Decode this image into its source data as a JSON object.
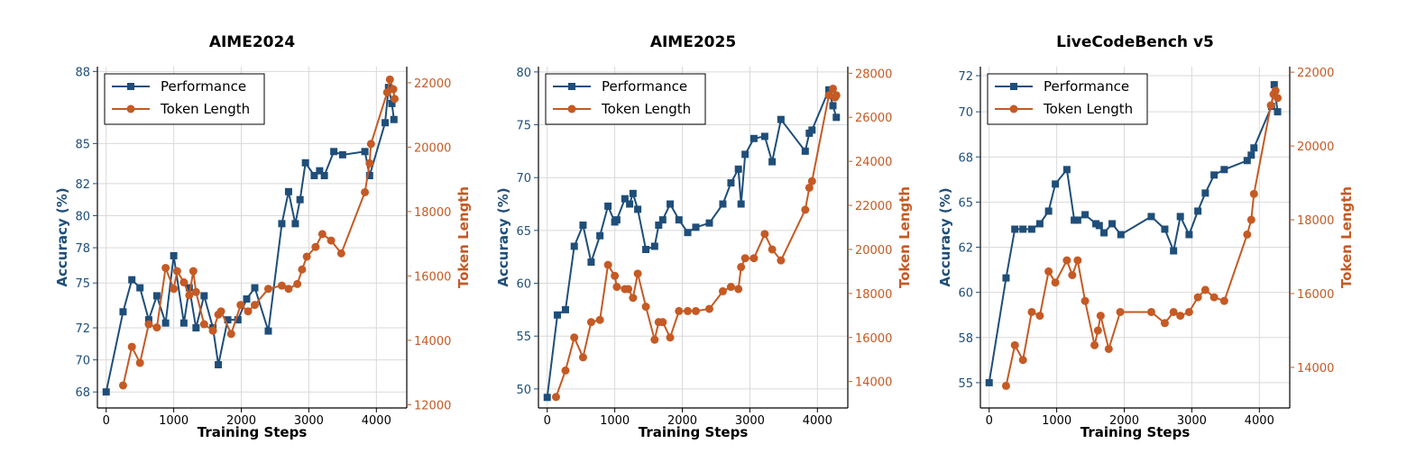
{
  "colors": {
    "performance": "#1f4e79",
    "token_length": "#c55a24",
    "grid": "#d9d9d9",
    "axis": "#000000"
  },
  "chart_data": [
    {
      "type": "line",
      "title": "AIME2024",
      "xlabel": "Training Steps",
      "ylabel": "Accuracy (%)",
      "y2label": "Token Length",
      "xlim": [
        -130,
        4450
      ],
      "ylim": [
        67.0,
        88.3
      ],
      "y2lim": [
        11900,
        22500
      ],
      "xticks": [
        0,
        1000,
        2000,
        3000,
        4000
      ],
      "xtick_labels": [
        "0",
        "1000",
        "2000",
        "3000",
        "4000"
      ],
      "yticks": [
        68,
        70,
        72,
        74,
        76,
        78,
        80,
        82,
        84,
        86,
        88
      ],
      "ytick_labels": [
        "68",
        "70",
        "72",
        "75",
        "78",
        "80",
        "82",
        "85",
        "88"
      ],
      "ytick_positions": [
        68,
        70,
        72,
        74.8,
        77,
        79,
        81,
        83.5,
        88
      ],
      "y2ticks": [
        12000,
        14000,
        16000,
        18000,
        20000,
        22000
      ],
      "y2tick_labels": [
        "12000",
        "14000",
        "16000",
        "18000",
        "20000",
        "22000"
      ],
      "grid": true,
      "legend": "top-left",
      "series": [
        {
          "name": "Performance",
          "axis": "left",
          "marker": "square",
          "x": [
            0,
            250,
            380,
            500,
            630,
            750,
            880,
            1000,
            1150,
            1230,
            1330,
            1450,
            1580,
            1660,
            1800,
            1950,
            2080,
            2200,
            2400,
            2600,
            2700,
            2800,
            2870,
            2950,
            3080,
            3160,
            3230,
            3370,
            3500,
            3830,
            3900,
            4130,
            4180,
            4230,
            4260
          ],
          "y": [
            68.0,
            73.0,
            75.0,
            74.5,
            72.5,
            74.0,
            72.3,
            76.5,
            72.3,
            74.5,
            72.0,
            74.0,
            72.0,
            69.7,
            72.5,
            72.5,
            73.8,
            74.5,
            71.8,
            78.5,
            80.5,
            78.5,
            80.0,
            82.3,
            81.5,
            81.8,
            81.5,
            83.0,
            82.8,
            83.0,
            81.5,
            84.8,
            87.0,
            86.0,
            85.0
          ],
          "ylabels_note": ""
        },
        {
          "name": "Token Length",
          "axis": "right",
          "marker": "circle",
          "x": [
            250,
            380,
            500,
            630,
            750,
            880,
            1000,
            1050,
            1150,
            1230,
            1290,
            1330,
            1450,
            1580,
            1660,
            1700,
            1850,
            1990,
            2100,
            2200,
            2400,
            2600,
            2700,
            2830,
            2900,
            2970,
            3100,
            3200,
            3330,
            3480,
            3830,
            3900,
            3920,
            4160,
            4200,
            4250,
            4270
          ],
          "y": [
            12600,
            13800,
            13300,
            14500,
            14400,
            16250,
            15600,
            16150,
            15800,
            15400,
            16150,
            15500,
            14500,
            14300,
            14800,
            14900,
            14200,
            15100,
            14900,
            15100,
            15600,
            15700,
            15600,
            15750,
            16200,
            16600,
            16900,
            17300,
            17100,
            16700,
            18600,
            19500,
            20100,
            21700,
            22100,
            21800,
            21500
          ]
        }
      ]
    },
    {
      "type": "line",
      "title": "AIME2025",
      "xlabel": "Training Steps",
      "ylabel": "Accuracy (%)",
      "y2label": "Token Length",
      "xlim": [
        -130,
        4450
      ],
      "ylim": [
        48.2,
        80.5
      ],
      "y2lim": [
        12800,
        28300
      ],
      "xticks": [
        0,
        1000,
        2000,
        3000,
        4000
      ],
      "xtick_labels": [
        "0",
        "1000",
        "2000",
        "3000",
        "4000"
      ],
      "yticks": [
        50,
        55,
        60,
        65,
        70,
        75,
        80
      ],
      "ytick_labels": [
        "50",
        "55",
        "60",
        "65",
        "70",
        "75",
        "80"
      ],
      "ytick_positions": [
        50,
        55,
        60,
        65,
        70,
        75,
        80
      ],
      "y2ticks": [
        14000,
        16000,
        18000,
        20000,
        22000,
        24000,
        26000,
        28000
      ],
      "y2tick_labels": [
        "14000",
        "16000",
        "18000",
        "20000",
        "22000",
        "24000",
        "26000",
        "28000"
      ],
      "grid": true,
      "legend": "top-left",
      "series": [
        {
          "name": "Performance",
          "axis": "left",
          "marker": "square",
          "x": [
            0,
            150,
            270,
            400,
            530,
            650,
            780,
            900,
            1000,
            1030,
            1150,
            1220,
            1270,
            1340,
            1460,
            1590,
            1650,
            1710,
            1820,
            1950,
            2080,
            2200,
            2400,
            2600,
            2720,
            2830,
            2870,
            2930,
            3060,
            3220,
            3330,
            3460,
            3820,
            3880,
            3920,
            4170,
            4230,
            4280
          ],
          "y": [
            49.2,
            57.0,
            57.5,
            63.5,
            65.5,
            62.0,
            64.5,
            67.3,
            65.8,
            66.0,
            68.0,
            67.5,
            68.5,
            67.0,
            63.2,
            63.5,
            65.5,
            66.0,
            67.5,
            66.0,
            64.8,
            65.3,
            65.7,
            67.5,
            69.5,
            70.8,
            67.5,
            72.2,
            73.7,
            73.9,
            71.5,
            75.5,
            72.5,
            74.2,
            74.5,
            78.3,
            76.8,
            75.7
          ]
        },
        {
          "name": "Token Length",
          "axis": "right",
          "marker": "circle",
          "x": [
            130,
            270,
            400,
            530,
            650,
            780,
            900,
            1000,
            1030,
            1150,
            1200,
            1270,
            1340,
            1460,
            1590,
            1650,
            1710,
            1820,
            1950,
            2080,
            2200,
            2400,
            2600,
            2720,
            2830,
            2870,
            2930,
            3060,
            3220,
            3330,
            3460,
            3820,
            3880,
            3920,
            4170,
            4230,
            4260,
            4280
          ],
          "y": [
            13300,
            14500,
            16000,
            15100,
            16700,
            16800,
            19300,
            18800,
            18300,
            18200,
            18200,
            17800,
            18900,
            17400,
            15900,
            16700,
            16700,
            16000,
            17200,
            17200,
            17200,
            17300,
            18100,
            18300,
            18200,
            19200,
            19600,
            19600,
            20700,
            20000,
            19500,
            21800,
            22800,
            23100,
            27000,
            27300,
            26900,
            27000
          ]
        }
      ]
    },
    {
      "type": "line",
      "title": "LiveCodeBench v5",
      "xlabel": "Training Steps",
      "ylabel": "Accuracy (%)",
      "y2label": "Token Length",
      "xlim": [
        -130,
        4450
      ],
      "ylim": [
        53.6,
        72.5
      ],
      "y2lim": [
        12900,
        22150
      ],
      "xticks": [
        0,
        1000,
        2000,
        3000,
        4000
      ],
      "xtick_labels": [
        "0",
        "1000",
        "2000",
        "3000",
        "4000"
      ],
      "yticks": [
        55,
        57.5,
        60,
        62.5,
        65,
        67.5,
        70,
        72
      ],
      "ytick_labels": [
        "55",
        "58",
        "60",
        "62",
        "65",
        "68",
        "70",
        "72"
      ],
      "ytick_positions": [
        55,
        57.5,
        60,
        62.5,
        65,
        67.5,
        70,
        72
      ],
      "y2ticks": [
        14000,
        16000,
        18000,
        20000,
        22000
      ],
      "y2tick_labels": [
        "14000",
        "16000",
        "18000",
        "20000",
        "22000"
      ],
      "grid": true,
      "legend": "top-left",
      "series": [
        {
          "name": "Performance",
          "axis": "left",
          "marker": "square",
          "x": [
            0,
            250,
            380,
            500,
            630,
            750,
            880,
            980,
            1150,
            1260,
            1310,
            1420,
            1580,
            1630,
            1700,
            1820,
            1950,
            2400,
            2600,
            2730,
            2830,
            2960,
            3090,
            3200,
            3330,
            3480,
            3820,
            3880,
            3920,
            4180,
            4220,
            4270
          ],
          "y": [
            55.0,
            60.8,
            63.5,
            63.5,
            63.5,
            63.8,
            64.5,
            66.0,
            66.8,
            64.0,
            64.0,
            64.3,
            63.8,
            63.7,
            63.3,
            63.8,
            63.2,
            64.2,
            63.5,
            62.3,
            64.2,
            63.2,
            64.5,
            65.5,
            66.5,
            66.8,
            67.3,
            67.6,
            68.0,
            70.3,
            71.5,
            70.0
          ]
        },
        {
          "name": "Token Length",
          "axis": "right",
          "marker": "circle",
          "x": [
            250,
            380,
            500,
            630,
            750,
            880,
            980,
            1150,
            1230,
            1310,
            1420,
            1560,
            1610,
            1650,
            1770,
            1940,
            2400,
            2600,
            2730,
            2830,
            2960,
            3090,
            3200,
            3330,
            3480,
            3820,
            3880,
            3920,
            4170,
            4210,
            4240,
            4270
          ],
          "y": [
            13500,
            14600,
            14200,
            15500,
            15400,
            16600,
            16300,
            16900,
            16500,
            16900,
            15800,
            14600,
            15000,
            15400,
            14500,
            15500,
            15500,
            15200,
            15500,
            15400,
            15500,
            15900,
            16100,
            15900,
            15800,
            17600,
            18000,
            18700,
            21100,
            21400,
            21500,
            21300
          ]
        }
      ]
    }
  ]
}
